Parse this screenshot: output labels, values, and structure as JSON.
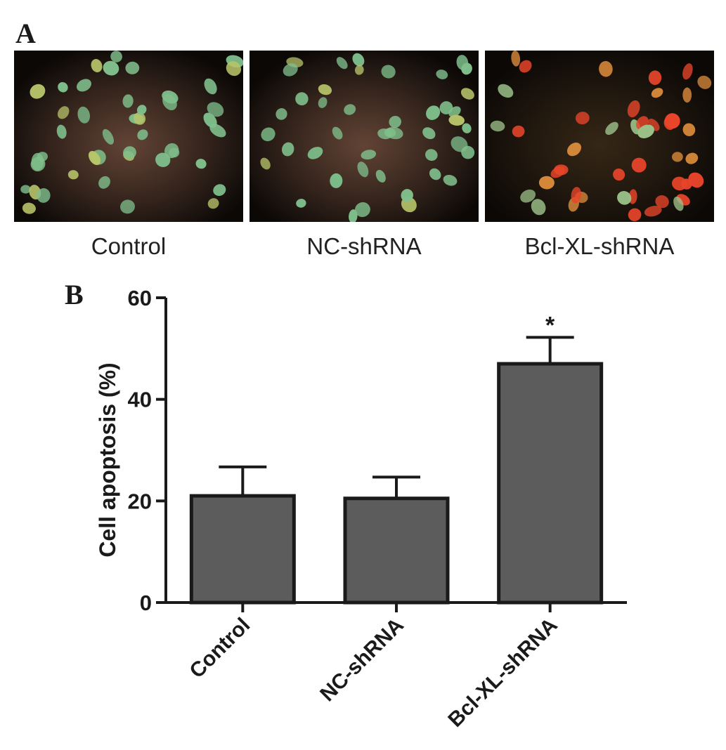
{
  "figure": {
    "panel_a_letter": "A",
    "panel_b_letter": "B"
  },
  "micrographs": [
    {
      "label": "Control",
      "dominant_stain": "green"
    },
    {
      "label": "NC-shRNA",
      "dominant_stain": "green"
    },
    {
      "label": "Bcl-XL-shRNA",
      "dominant_stain": "red"
    }
  ],
  "colors": {
    "bar_fill": "#5c5c5c",
    "bar_stroke": "#1a1a1a",
    "axis": "#1a1a1a",
    "nucleus_green": "#7fbf8c",
    "nucleus_red": "#e8452a",
    "micro_background": "#0b0806"
  },
  "chart_data": {
    "type": "bar",
    "categories": [
      "Control",
      "NC-shRNA",
      "Bcl-XL-shRNA"
    ],
    "values": [
      21,
      20.5,
      47
    ],
    "errors": [
      5.7,
      4.2,
      5.2
    ],
    "significance": [
      "",
      "",
      "*"
    ],
    "title": "",
    "xlabel": "",
    "ylabel": "Cell apoptosis (%)",
    "ylim": [
      0,
      60
    ],
    "yticks": [
      0,
      20,
      40,
      60
    ],
    "grid": false,
    "legend": "none"
  }
}
